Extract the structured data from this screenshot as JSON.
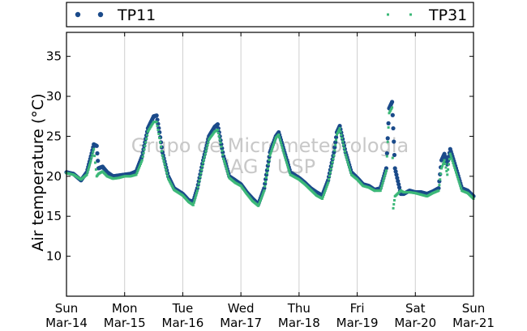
{
  "chart_data": {
    "type": "scatter",
    "title": "",
    "ylabel": "Air temperature (°C)",
    "xlabel": "",
    "ylim": [
      5,
      38
    ],
    "xlim": [
      0,
      7
    ],
    "y_ticks": [
      10,
      15,
      20,
      25,
      30,
      35
    ],
    "x_ticks": [
      {
        "x": 0,
        "day": "Sun",
        "date": "Mar-14"
      },
      {
        "x": 1,
        "day": "Mon",
        "date": "Mar-15"
      },
      {
        "x": 2,
        "day": "Tue",
        "date": "Mar-16"
      },
      {
        "x": 3,
        "day": "Wed",
        "date": "Mar-17"
      },
      {
        "x": 4,
        "day": "Thu",
        "date": "Mar-18"
      },
      {
        "x": 5,
        "day": "Fri",
        "date": "Mar-19"
      },
      {
        "x": 6,
        "day": "Sat",
        "date": "Mar-20"
      },
      {
        "x": 7,
        "day": "Sun",
        "date": "Mar-21"
      }
    ],
    "grid": "vertical",
    "legend_position": "top",
    "watermark": [
      "Grupo de Micrometeorologia",
      "IAG / USP"
    ],
    "series": [
      {
        "name": "TP11",
        "color": "#1a4a8a",
        "marker": "circle",
        "x": [
          0.0,
          0.12,
          0.25,
          0.35,
          0.42,
          0.47,
          0.52,
          0.55,
          0.62,
          0.7,
          0.8,
          0.9,
          1.0,
          1.1,
          1.2,
          1.3,
          1.4,
          1.5,
          1.55,
          1.6,
          1.65,
          1.75,
          1.85,
          2.0,
          2.1,
          2.18,
          2.25,
          2.35,
          2.45,
          2.55,
          2.6,
          2.65,
          2.7,
          2.8,
          2.9,
          3.0,
          3.1,
          3.2,
          3.3,
          3.4,
          3.5,
          3.6,
          3.65,
          3.75,
          3.85,
          4.0,
          4.1,
          4.2,
          4.3,
          4.4,
          4.5,
          4.6,
          4.65,
          4.7,
          4.8,
          4.9,
          5.0,
          5.1,
          5.2,
          5.3,
          5.4,
          5.5,
          5.55,
          5.6,
          5.62,
          5.65,
          5.75,
          5.8,
          5.9,
          6.0,
          6.1,
          6.2,
          6.3,
          6.4,
          6.45,
          6.5,
          6.55,
          6.6,
          6.7,
          6.8,
          6.9,
          7.0
        ],
        "y": [
          20.5,
          20.3,
          19.5,
          20.5,
          22.5,
          24.0,
          23.8,
          21.0,
          21.2,
          20.5,
          20.0,
          20.1,
          20.2,
          20.3,
          20.6,
          22.5,
          26.0,
          27.5,
          27.6,
          25.5,
          23.0,
          20.0,
          18.5,
          17.8,
          17.0,
          16.8,
          18.5,
          22.0,
          25.0,
          26.2,
          26.5,
          24.5,
          22.5,
          20.0,
          19.5,
          19.0,
          18.0,
          17.2,
          16.5,
          18.5,
          23.0,
          25.0,
          25.5,
          23.0,
          20.5,
          19.8,
          19.2,
          18.5,
          18.0,
          17.6,
          19.5,
          23.0,
          25.5,
          26.3,
          23.0,
          20.5,
          19.8,
          19.0,
          18.8,
          18.3,
          18.5,
          21.0,
          28.5,
          29.3,
          26.0,
          21.0,
          17.8,
          17.8,
          18.2,
          18.0,
          18.0,
          17.8,
          18.1,
          18.5,
          22.0,
          22.8,
          21.5,
          23.4,
          21.0,
          18.5,
          18.2,
          17.5
        ]
      },
      {
        "name": "TP31",
        "color": "#3cb878",
        "marker": "square",
        "x": [
          0.0,
          0.12,
          0.25,
          0.35,
          0.42,
          0.47,
          0.52,
          0.55,
          0.62,
          0.7,
          0.8,
          0.9,
          1.0,
          1.1,
          1.2,
          1.3,
          1.4,
          1.5,
          1.55,
          1.6,
          1.65,
          1.75,
          1.85,
          2.0,
          2.1,
          2.18,
          2.25,
          2.35,
          2.45,
          2.55,
          2.6,
          2.65,
          2.7,
          2.8,
          2.9,
          3.0,
          3.1,
          3.2,
          3.3,
          3.4,
          3.5,
          3.6,
          3.65,
          3.75,
          3.85,
          4.0,
          4.1,
          4.2,
          4.3,
          4.4,
          4.5,
          4.6,
          4.65,
          4.7,
          4.8,
          4.9,
          5.0,
          5.1,
          5.2,
          5.3,
          5.4,
          5.5,
          5.55,
          5.6,
          5.62,
          5.65,
          5.75,
          5.8,
          5.9,
          6.0,
          6.1,
          6.2,
          6.3,
          6.4,
          6.45,
          6.5,
          6.55,
          6.6,
          6.7,
          6.8,
          6.9,
          7.0
        ],
        "y": [
          20.4,
          20.2,
          19.6,
          20.2,
          22.0,
          23.4,
          20.0,
          20.3,
          20.6,
          20.0,
          19.7,
          19.8,
          20.0,
          20.0,
          20.2,
          22.0,
          25.6,
          26.8,
          26.8,
          24.8,
          22.6,
          19.7,
          18.3,
          17.6,
          16.8,
          16.4,
          18.2,
          21.7,
          24.6,
          25.6,
          25.8,
          24.2,
          22.2,
          19.8,
          19.2,
          18.8,
          17.8,
          16.9,
          16.3,
          18.2,
          22.6,
          24.8,
          25.2,
          22.6,
          20.2,
          19.6,
          19.0,
          18.3,
          17.6,
          17.2,
          19.2,
          22.6,
          25.2,
          26.0,
          22.7,
          20.2,
          19.6,
          18.8,
          18.6,
          18.2,
          18.2,
          20.7,
          27.9,
          28.6,
          16.0,
          17.5,
          18.2,
          18.0,
          18.0,
          17.9,
          17.7,
          17.5,
          17.9,
          18.2,
          21.0,
          22.0,
          20.2,
          22.8,
          20.5,
          18.2,
          17.9,
          17.2
        ]
      }
    ]
  }
}
